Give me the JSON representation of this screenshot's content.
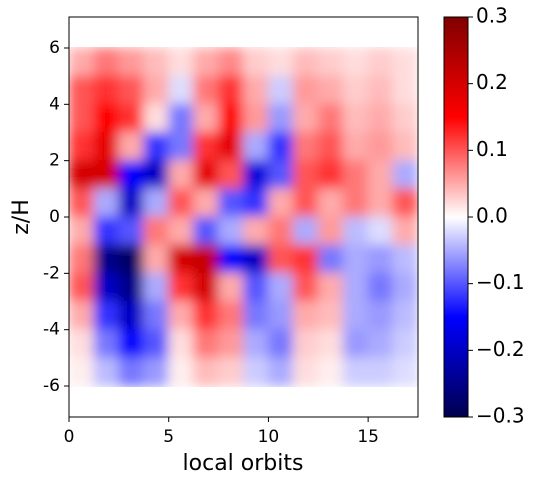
{
  "chart_data": {
    "type": "heatmap",
    "xlabel": "local orbits",
    "ylabel": "z/H",
    "colormap": "seismic",
    "xbins": [
      0,
      1.25,
      2.5,
      3.75,
      5,
      6.25,
      7.5,
      8.75,
      10,
      11.25,
      12.5,
      13.75,
      15,
      16.25,
      17.5
    ],
    "ybins": [
      6,
      5,
      4,
      3,
      2,
      1,
      0,
      -1,
      -2,
      -3,
      -4,
      -5,
      -6
    ],
    "values": [
      [
        0.05,
        0.08,
        0.06,
        0.04,
        0.02,
        0.05,
        0.07,
        0.03,
        0.02,
        0.04,
        0.03,
        0.02,
        0.03,
        0.02
      ],
      [
        0.1,
        0.12,
        0.1,
        0.05,
        -0.02,
        0.08,
        0.12,
        0.05,
        -0.03,
        0.06,
        0.05,
        0.03,
        0.04,
        0.02
      ],
      [
        0.1,
        0.15,
        0.12,
        0.02,
        -0.08,
        0.05,
        0.15,
        0.06,
        -0.06,
        0.05,
        0.08,
        0.04,
        0.05,
        0.03
      ],
      [
        0.12,
        0.18,
        0.05,
        -0.12,
        -0.08,
        0.12,
        0.18,
        -0.05,
        -0.12,
        0.08,
        0.1,
        0.05,
        0.06,
        0.04
      ],
      [
        0.2,
        0.2,
        -0.15,
        -0.2,
        0.05,
        0.18,
        0.1,
        -0.18,
        -0.1,
        0.1,
        0.12,
        0.08,
        0.05,
        -0.05
      ],
      [
        0.1,
        -0.05,
        -0.2,
        -0.05,
        0.1,
        0.05,
        -0.1,
        -0.12,
        0.05,
        0.1,
        0.05,
        0.08,
        0.05,
        0.1
      ],
      [
        0.05,
        -0.12,
        -0.1,
        0.08,
        0.05,
        -0.1,
        -0.05,
        0.05,
        0.08,
        -0.05,
        0.06,
        -0.04,
        -0.02,
        0.05
      ],
      [
        0.08,
        -0.25,
        -0.28,
        0.05,
        0.2,
        0.22,
        -0.15,
        -0.2,
        0.1,
        0.12,
        -0.08,
        -0.05,
        -0.06,
        -0.04
      ],
      [
        0.1,
        -0.2,
        -0.25,
        -0.05,
        0.12,
        0.2,
        0.05,
        -0.1,
        -0.05,
        0.1,
        0.05,
        -0.05,
        -0.08,
        -0.05
      ],
      [
        0.05,
        -0.12,
        -0.2,
        -0.08,
        0.05,
        0.12,
        0.08,
        -0.08,
        -0.06,
        0.05,
        0.04,
        -0.05,
        -0.06,
        -0.04
      ],
      [
        0.02,
        -0.08,
        -0.15,
        -0.1,
        0.02,
        0.08,
        0.06,
        -0.05,
        -0.08,
        0.03,
        0.02,
        -0.06,
        -0.05,
        -0.03
      ],
      [
        0.01,
        -0.04,
        -0.08,
        -0.06,
        0.01,
        0.04,
        0.03,
        -0.03,
        -0.05,
        0.02,
        0.01,
        -0.03,
        -0.03,
        -0.02
      ]
    ],
    "xlim": [
      0,
      17.5
    ],
    "ylim": [
      -7.1,
      7.1
    ],
    "xticks": [
      0,
      5,
      10,
      15
    ],
    "yticks": [
      -6,
      -4,
      -2,
      0,
      2,
      4,
      6
    ],
    "clim": [
      -0.3,
      0.3
    ],
    "cticks": [
      {
        "value": -0.3,
        "label": "−0.3"
      },
      {
        "value": -0.2,
        "label": "−0.2"
      },
      {
        "value": -0.1,
        "label": "−0.1"
      },
      {
        "value": 0,
        "label": "0.0"
      },
      0.1,
      0.2,
      0.3
    ]
  }
}
